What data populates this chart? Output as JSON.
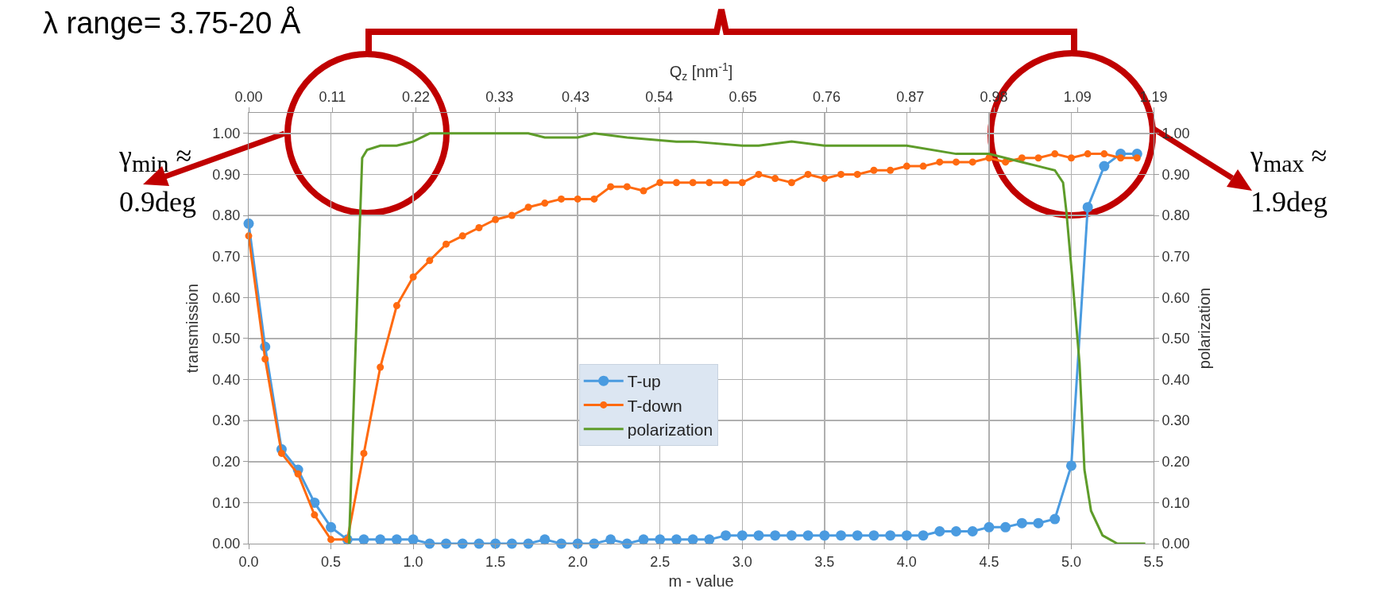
{
  "chart_data": {
    "type": "line",
    "xlabel": "m - value",
    "x2label": "Q$_{z}$ [nm$^{-1}$]",
    "ylabel": "transmission",
    "y2label": "polarization",
    "annotations": [
      "λ range= 3.75-20 Å",
      "γ$_{min}$ ≈\n0.9deg",
      "γ$_{max}$ ≈\n1.9deg"
    ],
    "x": [
      0,
      0.1,
      0.2,
      0.3,
      0.4,
      0.5,
      0.6,
      0.7,
      0.8,
      0.9,
      1.0,
      1.1,
      1.2,
      1.3,
      1.4,
      1.5,
      1.6,
      1.7,
      1.8,
      1.9,
      2.0,
      2.1,
      2.2,
      2.3,
      2.4,
      2.5,
      2.6,
      2.7,
      2.8,
      2.9,
      3.0,
      3.1,
      3.2,
      3.3,
      3.4,
      3.5,
      3.6,
      3.7,
      3.8,
      3.9,
      4.0,
      4.1,
      4.2,
      4.3,
      4.4,
      4.5,
      4.6,
      4.7,
      4.8,
      4.9,
      5.0,
      5.1,
      5.2,
      5.3,
      5.4
    ],
    "series": [
      {
        "name": "T-up",
        "color": "#4a9be0",
        "marker": "circle",
        "values": [
          0.78,
          0.48,
          0.23,
          0.18,
          0.1,
          0.04,
          0.01,
          0.01,
          0.01,
          0.01,
          0.01,
          0,
          0,
          0,
          0,
          0,
          0,
          0,
          0.01,
          0,
          0,
          0,
          0.01,
          0,
          0.01,
          0.01,
          0.01,
          0.01,
          0.01,
          0.02,
          0.02,
          0.02,
          0.02,
          0.02,
          0.02,
          0.02,
          0.02,
          0.02,
          0.02,
          0.02,
          0.02,
          0.02,
          0.03,
          0.03,
          0.03,
          0.04,
          0.04,
          0.05,
          0.05,
          0.06,
          0.19,
          0.82,
          0.92,
          0.95,
          0.95
        ]
      },
      {
        "name": "T-down",
        "color": "#ff6a10",
        "marker": "circle",
        "values": [
          0.75,
          0.45,
          0.22,
          0.17,
          0.07,
          0.01,
          0.01,
          0.22,
          0.43,
          0.58,
          0.65,
          0.69,
          0.73,
          0.75,
          0.77,
          0.79,
          0.8,
          0.82,
          0.83,
          0.84,
          0.84,
          0.84,
          0.87,
          0.87,
          0.86,
          0.88,
          0.88,
          0.88,
          0.88,
          0.88,
          0.88,
          0.9,
          0.89,
          0.88,
          0.9,
          0.89,
          0.9,
          0.9,
          0.91,
          0.91,
          0.92,
          0.92,
          0.93,
          0.93,
          0.93,
          0.94,
          0.93,
          0.94,
          0.94,
          0.95,
          0.94,
          0.95,
          0.95,
          0.94,
          0.94
        ]
      },
      {
        "name": "polarization",
        "color": "#5e9c2a",
        "marker": "none",
        "axis": "y2",
        "x": [
          0.61,
          0.66,
          0.69,
          0.72,
          0.8,
          0.9,
          1.0,
          1.1,
          1.2,
          1.5,
          1.7,
          1.8,
          2.0,
          2.1,
          2.3,
          2.6,
          2.7,
          3.0,
          3.1,
          3.3,
          3.5,
          3.7,
          3.8,
          4.0,
          4.3,
          4.4,
          4.5,
          4.7,
          4.8,
          4.9,
          4.95,
          4.97,
          5.01,
          5.05,
          5.08,
          5.12,
          5.19,
          5.28,
          5.45
        ],
        "values": [
          0,
          0.6,
          0.94,
          0.96,
          0.97,
          0.97,
          0.98,
          1.0,
          1.0,
          1.0,
          1.0,
          0.99,
          0.99,
          1.0,
          0.99,
          0.98,
          0.98,
          0.97,
          0.97,
          0.98,
          0.97,
          0.97,
          0.97,
          0.97,
          0.95,
          0.95,
          0.95,
          0.93,
          0.92,
          0.91,
          0.88,
          0.81,
          0.63,
          0.44,
          0.18,
          0.08,
          0.02,
          0,
          0
        ]
      }
    ],
    "xlim": [
      0,
      5.5
    ],
    "xticks": [
      {
        "value": 0,
        "label": "0.0"
      },
      0.5,
      {
        "value": 1,
        "label": "1.0"
      },
      1.5,
      {
        "value": 2,
        "label": "2.0"
      },
      2.5,
      {
        "value": 3,
        "label": "3.0"
      },
      3.5,
      {
        "value": 4,
        "label": "4.0"
      },
      4.5,
      {
        "value": 5,
        "label": "5.0"
      },
      5.5
    ],
    "x2lim": [
      0,
      1.19
    ],
    "x2ticks": [
      {
        "value": 0,
        "label": "0.00"
      },
      0.11,
      0.22,
      0.33,
      0.43,
      0.54,
      0.65,
      0.76,
      0.87,
      0.98,
      1.09,
      1.19
    ],
    "ylim": [
      0,
      1.05
    ],
    "yticks": [
      {
        "value": 0,
        "label": "0.00"
      },
      {
        "value": 0.1,
        "label": "0.10"
      },
      {
        "value": 0.2,
        "label": "0.20"
      },
      {
        "value": 0.3,
        "label": "0.30"
      },
      {
        "value": 0.4,
        "label": "0.40"
      },
      {
        "value": 0.5,
        "label": "0.50"
      },
      {
        "value": 0.6,
        "label": "0.60"
      },
      {
        "value": 0.7,
        "label": "0.70"
      },
      {
        "value": 0.8,
        "label": "0.80"
      },
      {
        "value": 0.9,
        "label": "0.90"
      },
      {
        "value": 1,
        "label": "1.00"
      }
    ],
    "y2lim": [
      0,
      1.05
    ],
    "y2ticks": [
      {
        "value": 0,
        "label": "0.00"
      },
      {
        "value": 0.1,
        "label": "0.10"
      },
      {
        "value": 0.2,
        "label": "0.20"
      },
      {
        "value": 0.3,
        "label": "0.30"
      },
      {
        "value": 0.4,
        "label": "0.40"
      },
      {
        "value": 0.5,
        "label": "0.50"
      },
      {
        "value": 0.6,
        "label": "0.60"
      },
      {
        "value": 0.7,
        "label": "0.70"
      },
      {
        "value": 0.8,
        "label": "0.80"
      },
      {
        "value": 0.9,
        "label": "0.90"
      },
      {
        "value": 1,
        "label": "1.00"
      }
    ],
    "grid": true,
    "legend": "bottom"
  }
}
